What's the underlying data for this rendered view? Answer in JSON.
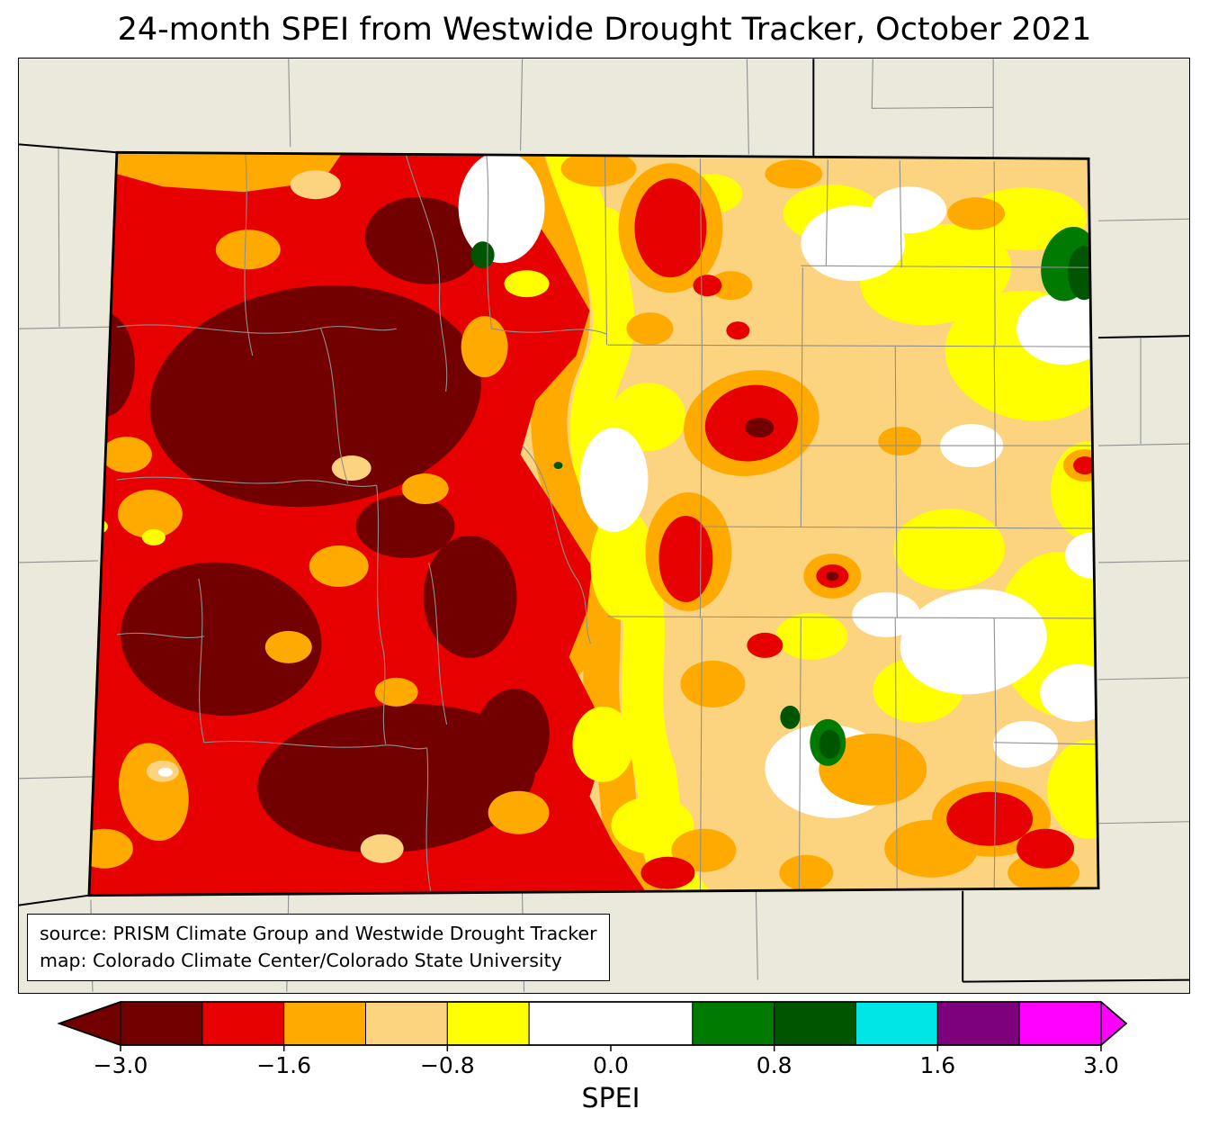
{
  "title": "24-month SPEI from Westwide Drought Tracker, October 2021",
  "map": {
    "region": "Colorado",
    "source_line": "source: PRISM Climate Group and Westwide Drought Tracker",
    "credit_line": "map: Colorado Climate Center/Colorado State University"
  },
  "colorbar": {
    "label": "SPEI",
    "ticks": [
      "−3.0",
      "−1.6",
      "−0.8",
      "0.0",
      "0.8",
      "1.6",
      "3.0"
    ],
    "tick_values": [
      -3.0,
      -1.6,
      -0.8,
      0.0,
      0.8,
      1.6,
      3.0
    ],
    "segments": [
      {
        "value_range": [
          -3.0,
          -2.3
        ],
        "color": "#730000",
        "units": 1
      },
      {
        "value_range": [
          -2.3,
          -1.6
        ],
        "color": "#E60000",
        "units": 1
      },
      {
        "value_range": [
          -1.6,
          -1.2
        ],
        "color": "#FFAA00",
        "units": 1
      },
      {
        "value_range": [
          -1.2,
          -0.8
        ],
        "color": "#FCD37F",
        "units": 1
      },
      {
        "value_range": [
          -0.8,
          -0.4
        ],
        "color": "#FFFF00",
        "units": 1
      },
      {
        "value_range": [
          -0.4,
          0.4
        ],
        "color": "#FFFFFF",
        "units": 2
      },
      {
        "value_range": [
          0.4,
          0.8
        ],
        "color": "#007A00",
        "units": 1
      },
      {
        "value_range": [
          0.8,
          1.2
        ],
        "color": "#005500",
        "units": 1
      },
      {
        "value_range": [
          1.2,
          1.6
        ],
        "color": "#00E5E5",
        "units": 1
      },
      {
        "value_range": [
          1.6,
          2.3
        ],
        "color": "#7D007D",
        "units": 1
      },
      {
        "value_range": [
          2.3,
          3.0
        ],
        "color": "#FF00FF",
        "units": 1
      }
    ],
    "under_arrow_color": "#730000",
    "over_arrow_color": "#FF00FF"
  },
  "palette": {
    "bg": "#EBE9DC",
    "maroon": "#730000",
    "red": "#E60000",
    "orange": "#FFAA00",
    "tan": "#FCD37F",
    "yellow": "#FFFF00",
    "white": "#FFFFFF",
    "green": "#007A00",
    "darkgreen": "#005500",
    "cyan": "#00E5E5",
    "purple": "#7D007D",
    "magenta": "#FF00FF",
    "county": "#8F8F8F",
    "state_line": "#000000"
  },
  "chart_data": {
    "type": "heatmap",
    "title": "24-month SPEI from Westwide Drought Tracker, October 2021",
    "region": "Colorado",
    "variable": "24-month SPEI",
    "colorbar_label": "SPEI",
    "colorbar_ticks": [
      -3.0,
      -1.6,
      -0.8,
      0.0,
      0.8,
      1.6,
      3.0
    ],
    "value_range": [
      -3.0,
      3.0
    ],
    "observed_pattern": [
      {
        "area": "western Colorado",
        "approx_spei": [
          -3.0,
          -1.6
        ]
      },
      {
        "area": "central mountains",
        "approx_spei": [
          -2.3,
          -0.8
        ]
      },
      {
        "area": "eastern plains",
        "approx_spei": [
          -1.2,
          0.4
        ]
      },
      {
        "area": "isolated wet spots (north-central, northeast corner, south-central)",
        "approx_spei": [
          0.4,
          1.2
        ]
      }
    ]
  }
}
